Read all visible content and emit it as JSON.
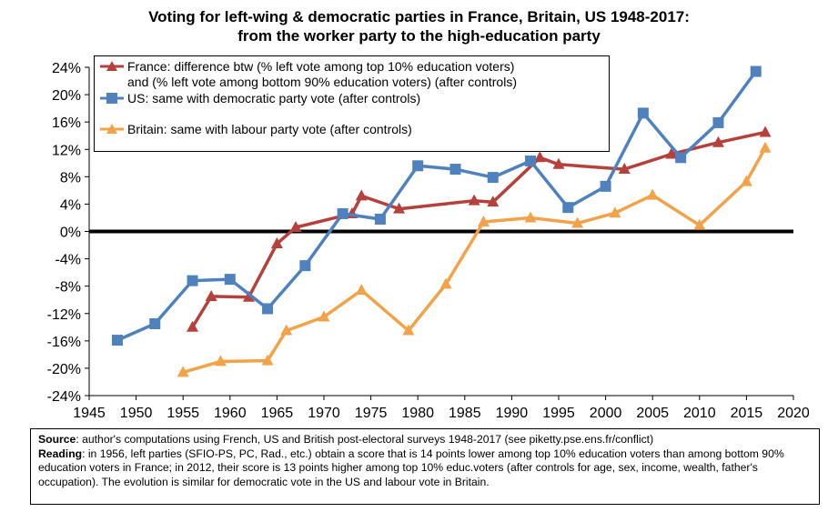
{
  "title_line1": "Voting for left-wing & democratic parties in France, Britain, US 1948-2017:",
  "title_line2": "from the worker party to the high-education party",
  "legend": {
    "france_line1": "France: difference btw (% left vote among top 10% education voters)",
    "france_line2": "and (% left vote among bottom 90% education voters) (after controls)",
    "us": "US: same with democratic party vote (after controls)",
    "britain": "Britain: same with labour party vote (after controls)"
  },
  "note": {
    "source_label": "Source",
    "source_text": ": author's computations using French, US and British post-electoral surveys 1948-2017 (see piketty.pse.ens.fr/conflict)",
    "reading_label": "Reading",
    "reading_text": ": in 1956, left parties (SFIO-PS, PC, Rad., etc.) obtain a score that is 14 points lower among top 10% education voters than among bottom 90% education voters in France; in 2012, their score is 13 points higher among top 10% educ.voters (after controls for age, sex, income, wealth, father's occupation). The evolution is similar for democratic vote in the US and labour vote in Britain."
  },
  "colors": {
    "france": "#b5413d",
    "us": "#4f81bd",
    "britain": "#f2a349"
  },
  "chart_data": {
    "type": "line",
    "xlim": [
      1945,
      2020
    ],
    "ylim": [
      -24,
      24
    ],
    "x_ticks": [
      "1945",
      "1950",
      "1955",
      "1960",
      "1965",
      "1970",
      "1975",
      "1980",
      "1985",
      "1990",
      "1995",
      "2000",
      "2005",
      "2010",
      "2015",
      "2020"
    ],
    "y_ticks": [
      "-24%",
      "-20%",
      "-16%",
      "-12%",
      "-8%",
      "-4%",
      "0%",
      "4%",
      "8%",
      "12%",
      "16%",
      "20%",
      "24%"
    ],
    "grid": false,
    "legend_position": "top-left",
    "series": [
      {
        "name": "France: difference btw (% left vote among top 10% education voters) and (% left vote among bottom 90% education voters) (after controls)",
        "marker": "triangle",
        "x": [
          1956,
          1958,
          1962,
          1965,
          1967,
          1973,
          1974,
          1978,
          1986,
          1988,
          1993,
          1995,
          2002,
          2007,
          2012,
          2017
        ],
        "y": [
          -14,
          -9.5,
          -9.6,
          -1.8,
          0.6,
          2.6,
          5.2,
          3.3,
          4.5,
          4.3,
          10.8,
          9.8,
          9.1,
          11.3,
          13.0,
          14.5
        ]
      },
      {
        "name": "US: same with democratic party vote (after controls)",
        "marker": "square",
        "x": [
          1948,
          1952,
          1956,
          1960,
          1964,
          1968,
          1972,
          1976,
          1980,
          1984,
          1988,
          1992,
          1996,
          2000,
          2004,
          2008,
          2012,
          2016
        ],
        "y": [
          -15.9,
          -13.5,
          -7.2,
          -7.0,
          -11.3,
          -5.0,
          2.6,
          1.8,
          9.6,
          9.1,
          7.9,
          10.3,
          3.5,
          6.6,
          17.3,
          10.8,
          15.9,
          23.4
        ]
      },
      {
        "name": "Britain: same with labour party vote (after controls)",
        "marker": "triangle",
        "x": [
          1955,
          1959,
          1964,
          1966,
          1970,
          1974,
          1979,
          1983,
          1987,
          1992,
          1997,
          2001,
          2005,
          2010,
          2015,
          2017
        ],
        "y": [
          -20.6,
          -19.0,
          -18.9,
          -14.5,
          -12.5,
          -8.6,
          -14.5,
          -7.7,
          1.4,
          2.0,
          1.2,
          2.7,
          5.3,
          0.9,
          7.3,
          12.2
        ]
      }
    ]
  }
}
